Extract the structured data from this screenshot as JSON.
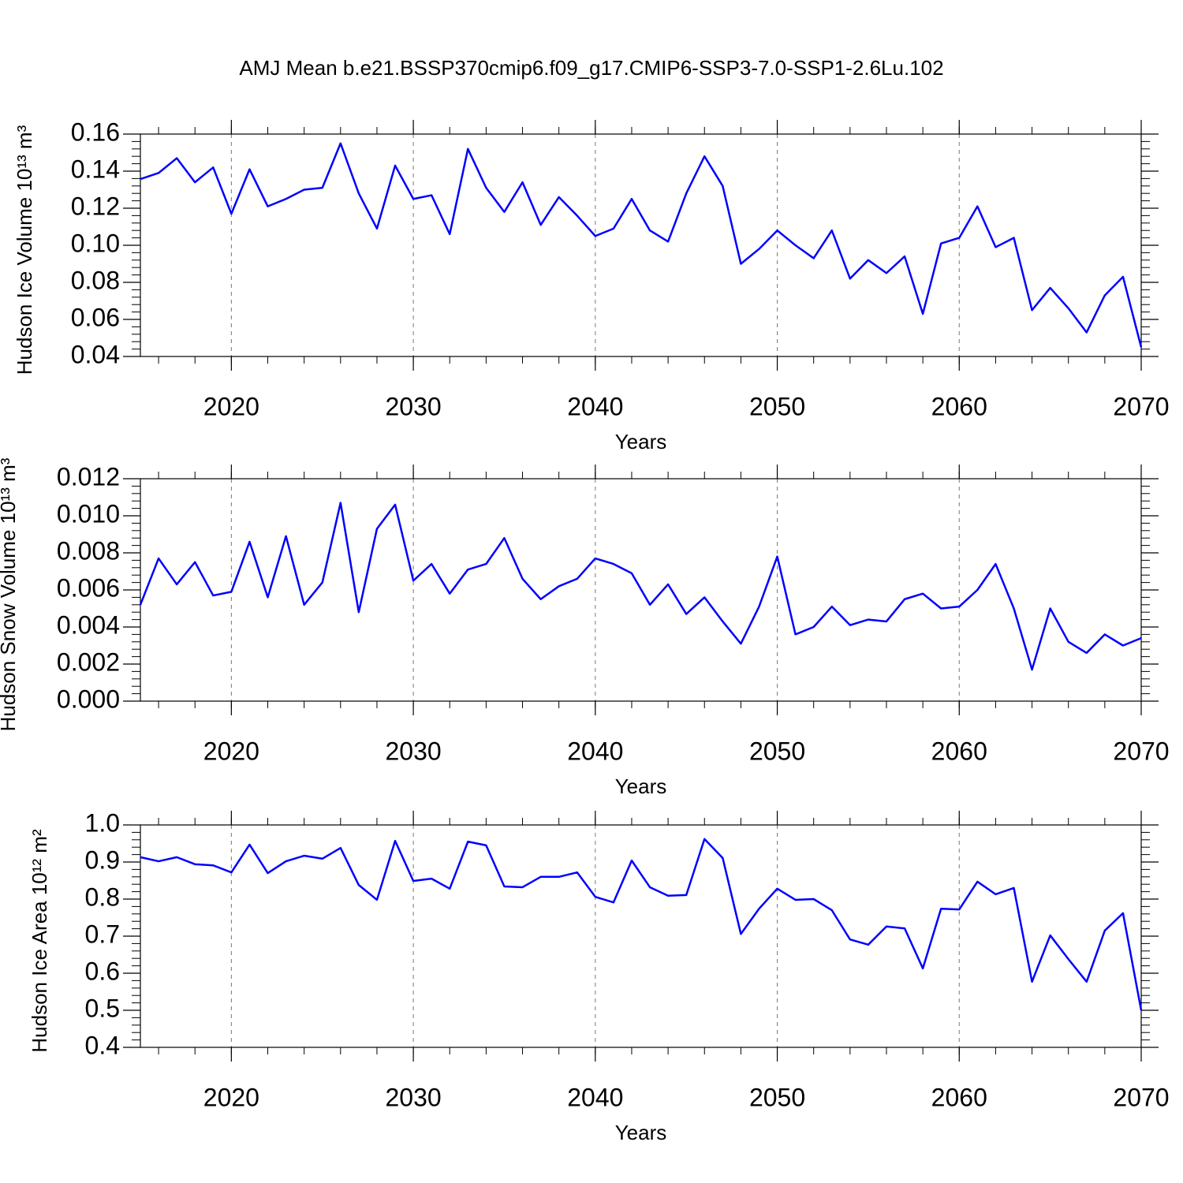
{
  "chart_data": [
    {
      "type": "line",
      "title": "AMJ Mean b.e21.BSSP370cmip6.f09_g17.CMIP6-SSP3-7.0-SSP1-2.6Lu.102",
      "ylabel": "Hudson Ice Volume 10¹³ m³",
      "xlabel": "Years",
      "color": "#0000ff",
      "grid": "x",
      "x": [
        2015,
        2016,
        2017,
        2018,
        2019,
        2020,
        2021,
        2022,
        2023,
        2024,
        2025,
        2026,
        2027,
        2028,
        2029,
        2030,
        2031,
        2032,
        2033,
        2034,
        2035,
        2036,
        2037,
        2038,
        2039,
        2040,
        2041,
        2042,
        2043,
        2044,
        2045,
        2046,
        2047,
        2048,
        2049,
        2050,
        2051,
        2052,
        2053,
        2054,
        2055,
        2056,
        2057,
        2058,
        2059,
        2060,
        2061,
        2062,
        2063,
        2064,
        2065,
        2066,
        2067,
        2068,
        2069,
        2070
      ],
      "values": [
        0.1357,
        0.139,
        0.147,
        0.134,
        0.142,
        0.117,
        0.141,
        0.121,
        0.125,
        0.13,
        0.131,
        0.155,
        0.128,
        0.109,
        0.143,
        0.125,
        0.127,
        0.106,
        0.152,
        0.131,
        0.118,
        0.134,
        0.111,
        0.126,
        0.116,
        0.105,
        0.109,
        0.125,
        0.108,
        0.102,
        0.128,
        0.148,
        0.132,
        0.09,
        0.098,
        0.108,
        0.1,
        0.093,
        0.108,
        0.082,
        0.092,
        0.085,
        0.094,
        0.063,
        0.101,
        0.104,
        0.121,
        0.099,
        0.104,
        0.065,
        0.077,
        0.066,
        0.053,
        0.073,
        0.083,
        0.045
      ],
      "xlim": [
        2015,
        2070
      ],
      "xticks": [
        2020,
        2030,
        2040,
        2050,
        2060,
        2070
      ],
      "ylim": [
        0.04,
        0.16
      ],
      "yticks": [
        0.04,
        0.06,
        0.08,
        {
          "value": 0.1,
          "label": "0.10"
        },
        0.12,
        0.14,
        0.16
      ]
    },
    {
      "type": "line",
      "ylabel": "Hudson Snow Volume 10¹³ m³",
      "xlabel": "Years",
      "color": "#0000ff",
      "grid": "x",
      "x": [
        2015,
        2016,
        2017,
        2018,
        2019,
        2020,
        2021,
        2022,
        2023,
        2024,
        2025,
        2026,
        2027,
        2028,
        2029,
        2030,
        2031,
        2032,
        2033,
        2034,
        2035,
        2036,
        2037,
        2038,
        2039,
        2040,
        2041,
        2042,
        2043,
        2044,
        2045,
        2046,
        2047,
        2048,
        2049,
        2050,
        2051,
        2052,
        2053,
        2054,
        2055,
        2056,
        2057,
        2058,
        2059,
        2060,
        2061,
        2062,
        2063,
        2064,
        2065,
        2066,
        2067,
        2068,
        2069,
        2070
      ],
      "values": [
        0.0052,
        0.0077,
        0.0063,
        0.0075,
        0.0057,
        0.0059,
        0.0086,
        0.0056,
        0.0089,
        0.0052,
        0.0064,
        0.0107,
        0.0048,
        0.0093,
        0.0106,
        0.0065,
        0.0074,
        0.0058,
        0.0071,
        0.0074,
        0.0088,
        0.0066,
        0.0055,
        0.0062,
        0.0066,
        0.0077,
        0.0074,
        0.0069,
        0.0052,
        0.0063,
        0.0047,
        0.0056,
        0.0043,
        0.0031,
        0.0051,
        0.0078,
        0.0036,
        0.004,
        0.0051,
        0.0041,
        0.0044,
        0.0043,
        0.0055,
        0.0058,
        0.005,
        0.0051,
        0.006,
        0.0074,
        0.005,
        0.0017,
        0.005,
        0.0032,
        0.0026,
        0.0036,
        0.003,
        0.0034
      ],
      "xlim": [
        2015,
        2070
      ],
      "xticks": [
        2020,
        2030,
        2040,
        2050,
        2060,
        2070
      ],
      "ylim": [
        0,
        0.012
      ],
      "yticks": [
        {
          "value": 0,
          "label": "0.000"
        },
        0.002,
        0.004,
        0.006,
        0.008,
        {
          "value": 0.01,
          "label": "0.010"
        },
        0.012
      ]
    },
    {
      "type": "line",
      "ylabel": "Hudson Ice Area 10¹² m²",
      "xlabel": "Years",
      "color": "#0000ff",
      "grid": "x",
      "x": [
        2015,
        2016,
        2017,
        2018,
        2019,
        2020,
        2021,
        2022,
        2023,
        2024,
        2025,
        2026,
        2027,
        2028,
        2029,
        2030,
        2031,
        2032,
        2033,
        2034,
        2035,
        2036,
        2037,
        2038,
        2039,
        2040,
        2041,
        2042,
        2043,
        2044,
        2045,
        2046,
        2047,
        2048,
        2049,
        2050,
        2051,
        2052,
        2053,
        2054,
        2055,
        2056,
        2057,
        2058,
        2059,
        2060,
        2061,
        2062,
        2063,
        2064,
        2065,
        2066,
        2067,
        2068,
        2069,
        2070
      ],
      "values": [
        0.913,
        0.902,
        0.913,
        0.894,
        0.891,
        0.872,
        0.947,
        0.87,
        0.902,
        0.917,
        0.909,
        0.938,
        0.838,
        0.798,
        0.957,
        0.849,
        0.855,
        0.828,
        0.955,
        0.945,
        0.834,
        0.832,
        0.86,
        0.86,
        0.872,
        0.806,
        0.791,
        0.904,
        0.832,
        0.809,
        0.811,
        0.962,
        0.911,
        0.706,
        0.774,
        0.828,
        0.798,
        0.8,
        0.77,
        0.691,
        0.677,
        0.726,
        0.721,
        0.613,
        0.774,
        0.772,
        0.847,
        0.813,
        0.83,
        0.577,
        0.702,
        0.638,
        0.577,
        0.715,
        0.762,
        0.5
      ],
      "xlim": [
        2015,
        2070
      ],
      "xticks": [
        2020,
        2030,
        2040,
        2050,
        2060,
        2070
      ],
      "ylim": [
        0.4,
        1.0
      ],
      "yticks": [
        0.4,
        0.5,
        0.6,
        0.7,
        0.8,
        0.9,
        {
          "value": 1.0,
          "label": "1.0"
        }
      ]
    }
  ]
}
